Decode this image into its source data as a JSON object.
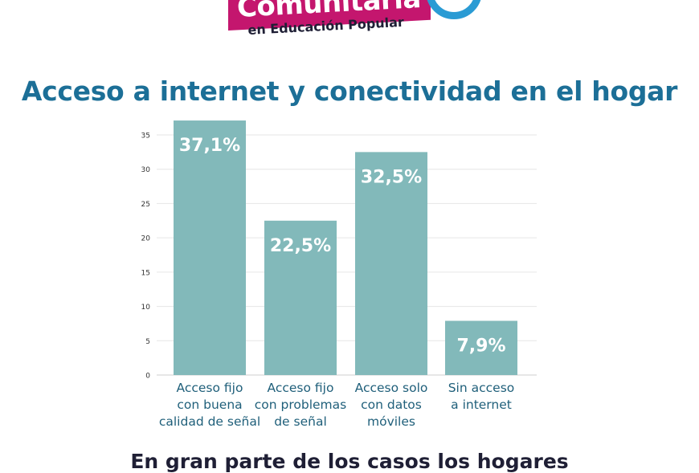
{
  "logo": {
    "word": "Comunitaria",
    "subtitle": "en Educación Popular"
  },
  "title": "Acceso a internet y conectividad en el hogar",
  "footer_text": "En gran parte de los casos los hogares",
  "colors": {
    "title": "#1c6f97",
    "bar": "#82b9ba",
    "logo_banner": "#c4166e",
    "logo_ring": "#2a9bd4",
    "axis_text": "#333333",
    "category_text": "#1f5f7a",
    "gridline": "#e6e6e6"
  },
  "chart_data": {
    "type": "bar",
    "categories": [
      [
        "Acceso fijo",
        "con buena",
        "calidad de señal"
      ],
      [
        "Acceso fijo",
        "con problemas",
        "de señal"
      ],
      [
        "Acceso solo",
        "con datos",
        "móviles"
      ],
      [
        "Sin acceso",
        "a internet"
      ]
    ],
    "values": [
      37.1,
      22.5,
      32.5,
      7.9
    ],
    "data_labels": [
      "37,1%",
      "22,5%",
      "32,5%",
      "7,9%"
    ],
    "yticks": [
      0,
      5,
      10,
      15,
      20,
      25,
      30,
      35
    ],
    "ylim": [
      0,
      35
    ],
    "grid": true,
    "legend": "none"
  }
}
